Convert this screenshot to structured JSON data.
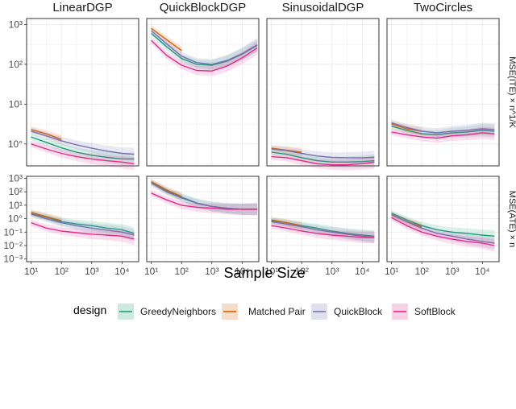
{
  "chart_data": {
    "type": "line",
    "facet_columns": [
      "LinearDGP",
      "QuickBlockDGP",
      "SinusoidalDGP",
      "TwoCircles"
    ],
    "facet_rows": [
      {
        "strip": "MSE(ITE) × n^1/K",
        "y_ticks": [
          "10°",
          "10¹",
          "10²",
          "10³"
        ],
        "y_exponents": [
          0,
          1,
          2,
          3
        ],
        "ylim_log10": [
          -0.55,
          3.15
        ]
      },
      {
        "strip": "MSE(ATE) × n",
        "y_ticks": [
          "10⁻³",
          "10⁻²",
          "10⁻¹",
          "10°",
          "10¹",
          "10²",
          "10³"
        ],
        "y_exponents": [
          -3,
          -2,
          -1,
          0,
          1,
          2,
          3
        ],
        "ylim_log10": [
          -3.2,
          3.15
        ]
      }
    ],
    "x_ticks": [
      "10¹",
      "10²",
      "10³",
      "10⁴"
    ],
    "x_exponents": [
      1,
      2,
      3,
      4
    ],
    "xlim_log10": [
      0.85,
      4.55
    ],
    "xlabel": "Sample Size",
    "grid": true,
    "legend": {
      "title": "design",
      "position": "bottom",
      "entries": [
        "GreedyNeighbors",
        "Matched Pair",
        "QuickBlock",
        "SoftBlock"
      ]
    },
    "colors": {
      "GreedyNeighbors": "#1b9e77",
      "Matched Pair": "#d95f02",
      "QuickBlock": "#7570b3",
      "SoftBlock": "#e7298a"
    },
    "panels": [
      {
        "row": 0,
        "col": 0,
        "series": [
          {
            "name": "GreedyNeighbors",
            "x": [
              1,
              1.5,
              2,
              2.5,
              3,
              3.5,
              4,
              4.4
            ],
            "y": [
              1.5,
              1.1,
              0.8,
              0.62,
              0.52,
              0.46,
              0.42,
              0.42
            ]
          },
          {
            "name": "Matched Pair",
            "x": [
              1,
              1.5,
              2
            ],
            "y": [
              2.3,
              1.8,
              1.3
            ]
          },
          {
            "name": "QuickBlock",
            "x": [
              1,
              1.5,
              2,
              2.5,
              3,
              3.5,
              4,
              4.4
            ],
            "y": [
              2.1,
              1.6,
              1.2,
              0.95,
              0.78,
              0.66,
              0.58,
              0.55
            ]
          },
          {
            "name": "SoftBlock",
            "x": [
              1,
              1.5,
              2,
              2.5,
              3,
              3.5,
              4,
              4.4
            ],
            "y": [
              1.0,
              0.75,
              0.58,
              0.48,
              0.42,
              0.38,
              0.35,
              0.32
            ]
          }
        ]
      },
      {
        "row": 0,
        "col": 1,
        "series": [
          {
            "name": "GreedyNeighbors",
            "x": [
              1,
              1.5,
              2,
              2.5,
              3,
              3.5,
              4,
              4.5
            ],
            "y": [
              600,
              280,
              140,
              100,
              95,
              120,
              180,
              300
            ]
          },
          {
            "name": "Matched Pair",
            "x": [
              1,
              1.5,
              2
            ],
            "y": [
              800,
              420,
              220
            ]
          },
          {
            "name": "QuickBlock",
            "x": [
              1,
              1.5,
              2,
              2.5,
              3,
              3.5,
              4,
              4.5
            ],
            "y": [
              700,
              330,
              160,
              110,
              100,
              125,
              185,
              310
            ]
          },
          {
            "name": "SoftBlock",
            "x": [
              1,
              1.5,
              2,
              2.5,
              3,
              3.5,
              4,
              4.5
            ],
            "y": [
              400,
              170,
              95,
              70,
              68,
              90,
              145,
              260
            ]
          }
        ]
      },
      {
        "row": 0,
        "col": 2,
        "series": [
          {
            "name": "GreedyNeighbors",
            "x": [
              1,
              1.5,
              2,
              2.5,
              3,
              3.5,
              4,
              4.4
            ],
            "y": [
              0.62,
              0.55,
              0.45,
              0.38,
              0.35,
              0.35,
              0.36,
              0.38
            ]
          },
          {
            "name": "Matched Pair",
            "x": [
              1,
              1.5,
              2
            ],
            "y": [
              0.78,
              0.7,
              0.62
            ]
          },
          {
            "name": "QuickBlock",
            "x": [
              1,
              1.5,
              2,
              2.5,
              3,
              3.5,
              4,
              4.4
            ],
            "y": [
              0.75,
              0.68,
              0.58,
              0.5,
              0.46,
              0.45,
              0.45,
              0.46
            ]
          },
          {
            "name": "SoftBlock",
            "x": [
              1,
              1.5,
              2,
              2.5,
              3,
              3.5,
              4,
              4.4
            ],
            "y": [
              0.48,
              0.45,
              0.38,
              0.32,
              0.3,
              0.3,
              0.32,
              0.35
            ]
          }
        ]
      },
      {
        "row": 0,
        "col": 3,
        "series": [
          {
            "name": "GreedyNeighbors",
            "x": [
              1,
              1.5,
              2,
              2.5,
              3,
              3.5,
              4,
              4.4
            ],
            "y": [
              2.8,
              2.2,
              1.8,
              1.7,
              1.9,
              2.0,
              2.2,
              2.1
            ]
          },
          {
            "name": "Matched Pair",
            "x": [
              1,
              1.5,
              2
            ],
            "y": [
              3.2,
              2.4,
              2.1
            ]
          },
          {
            "name": "QuickBlock",
            "x": [
              1,
              1.5,
              2,
              2.5,
              3,
              3.5,
              4,
              4.4
            ],
            "y": [
              3.4,
              2.6,
              2.1,
              1.9,
              2.1,
              2.2,
              2.4,
              2.3
            ]
          },
          {
            "name": "SoftBlock",
            "x": [
              1,
              1.5,
              2,
              2.5,
              3,
              3.5,
              4,
              4.4
            ],
            "y": [
              2.0,
              1.7,
              1.5,
              1.4,
              1.6,
              1.7,
              1.9,
              1.8
            ]
          }
        ]
      },
      {
        "row": 1,
        "col": 0,
        "series": [
          {
            "name": "GreedyNeighbors",
            "x": [
              1,
              1.5,
              2,
              2.5,
              3,
              3.5,
              4,
              4.4
            ],
            "y": [
              2.5,
              1.3,
              0.6,
              0.4,
              0.3,
              0.2,
              0.15,
              0.08
            ]
          },
          {
            "name": "Matched Pair",
            "x": [
              1,
              1.5,
              2
            ],
            "y": [
              2.8,
              1.4,
              0.7
            ]
          },
          {
            "name": "QuickBlock",
            "x": [
              1,
              1.5,
              2,
              2.5,
              3,
              3.5,
              4,
              4.4
            ],
            "y": [
              2.2,
              1.0,
              0.5,
              0.3,
              0.2,
              0.14,
              0.1,
              0.06
            ]
          },
          {
            "name": "SoftBlock",
            "x": [
              1,
              1.5,
              2,
              2.5,
              3,
              3.5,
              4,
              4.4
            ],
            "y": [
              0.5,
              0.2,
              0.12,
              0.09,
              0.07,
              0.06,
              0.05,
              0.03
            ]
          }
        ]
      },
      {
        "row": 1,
        "col": 1,
        "series": [
          {
            "name": "GreedyNeighbors",
            "x": [
              1,
              1.5,
              2,
              2.5,
              3,
              3.5,
              4,
              4.5
            ],
            "y": [
              500,
              120,
              40,
              15,
              8,
              6,
              5,
              5
            ]
          },
          {
            "name": "Matched Pair",
            "x": [
              1,
              1.5,
              2
            ],
            "y": [
              550,
              140,
              45
            ]
          },
          {
            "name": "QuickBlock",
            "x": [
              1,
              1.5,
              2,
              2.5,
              3,
              3.5,
              4,
              4.5
            ],
            "y": [
              450,
              100,
              35,
              14,
              8,
              6,
              5,
              5
            ]
          },
          {
            "name": "SoftBlock",
            "x": [
              1,
              1.5,
              2,
              2.5,
              3,
              3.5,
              4,
              4.5
            ],
            "y": [
              80,
              25,
              10,
              7,
              6,
              5,
              5,
              5
            ]
          }
        ]
      },
      {
        "row": 1,
        "col": 2,
        "series": [
          {
            "name": "GreedyNeighbors",
            "x": [
              1,
              1.5,
              2,
              2.5,
              3,
              3.5,
              4,
              4.4
            ],
            "y": [
              0.7,
              0.5,
              0.3,
              0.2,
              0.12,
              0.08,
              0.06,
              0.05
            ]
          },
          {
            "name": "Matched Pair",
            "x": [
              1,
              1.5,
              2
            ],
            "y": [
              0.8,
              0.5,
              0.3
            ]
          },
          {
            "name": "QuickBlock",
            "x": [
              1,
              1.5,
              2,
              2.5,
              3,
              3.5,
              4,
              4.4
            ],
            "y": [
              0.6,
              0.4,
              0.25,
              0.15,
              0.1,
              0.07,
              0.05,
              0.04
            ]
          },
          {
            "name": "SoftBlock",
            "x": [
              1,
              1.5,
              2,
              2.5,
              3,
              3.5,
              4,
              4.4
            ],
            "y": [
              0.3,
              0.2,
              0.12,
              0.08,
              0.06,
              0.05,
              0.04,
              0.04
            ]
          }
        ]
      },
      {
        "row": 1,
        "col": 3,
        "series": [
          {
            "name": "GreedyNeighbors",
            "x": [
              1,
              1.5,
              2,
              2.5,
              3,
              3.5,
              4,
              4.4
            ],
            "y": [
              2.5,
              0.8,
              0.3,
              0.15,
              0.1,
              0.08,
              0.06,
              0.05
            ]
          },
          {
            "name": "Matched Pair",
            "x": [
              1,
              1.5,
              2
            ],
            "y": [
              2.0,
              0.6,
              0.25
            ]
          },
          {
            "name": "QuickBlock",
            "x": [
              1,
              1.5,
              2,
              2.5,
              3,
              3.5,
              4,
              4.4
            ],
            "y": [
              2.0,
              0.6,
              0.2,
              0.08,
              0.05,
              0.03,
              0.02,
              0.015
            ]
          },
          {
            "name": "SoftBlock",
            "x": [
              1,
              1.5,
              2,
              2.5,
              3,
              3.5,
              4,
              4.4
            ],
            "y": [
              1.2,
              0.3,
              0.1,
              0.05,
              0.03,
              0.02,
              0.015,
              0.01
            ]
          }
        ]
      }
    ]
  }
}
